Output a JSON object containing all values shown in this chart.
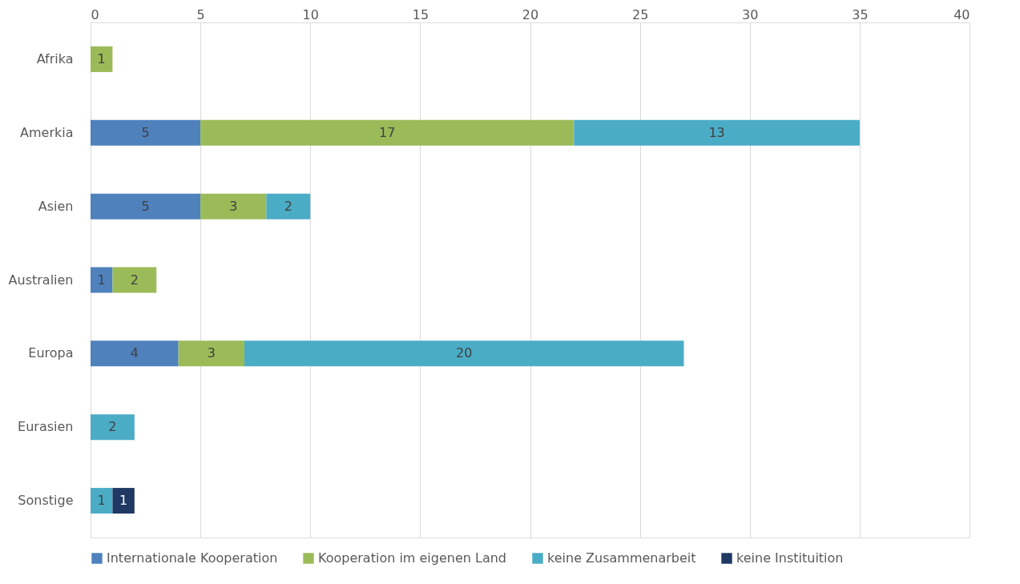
{
  "chart_data": {
    "type": "bar",
    "orientation": "horizontal",
    "stacked": true,
    "categories": [
      "Afrika",
      "Amerkia",
      "Asien",
      "Australien",
      "Europa",
      "Eurasien",
      "Sonstige"
    ],
    "series": [
      {
        "name": "Internationale Kooperation",
        "color": "#4f81bd",
        "values": [
          null,
          5,
          5,
          1,
          4,
          null,
          null
        ]
      },
      {
        "name": "Kooperation im eigenen Land",
        "color": "#9bbb59",
        "values": [
          1,
          17,
          3,
          2,
          3,
          null,
          null
        ]
      },
      {
        "name": "keine Zusammenarbeit",
        "color": "#4bacc6",
        "values": [
          null,
          13,
          2,
          null,
          20,
          2,
          1
        ]
      },
      {
        "name": "keine Instituition",
        "color": "#1f3864",
        "values": [
          null,
          null,
          null,
          null,
          null,
          null,
          1
        ]
      }
    ],
    "xlim": [
      0,
      40
    ],
    "xticks": [
      0,
      5,
      10,
      15,
      20,
      25,
      30,
      35,
      40
    ],
    "grid": "x",
    "legend": "bottom",
    "data_labels": true
  }
}
